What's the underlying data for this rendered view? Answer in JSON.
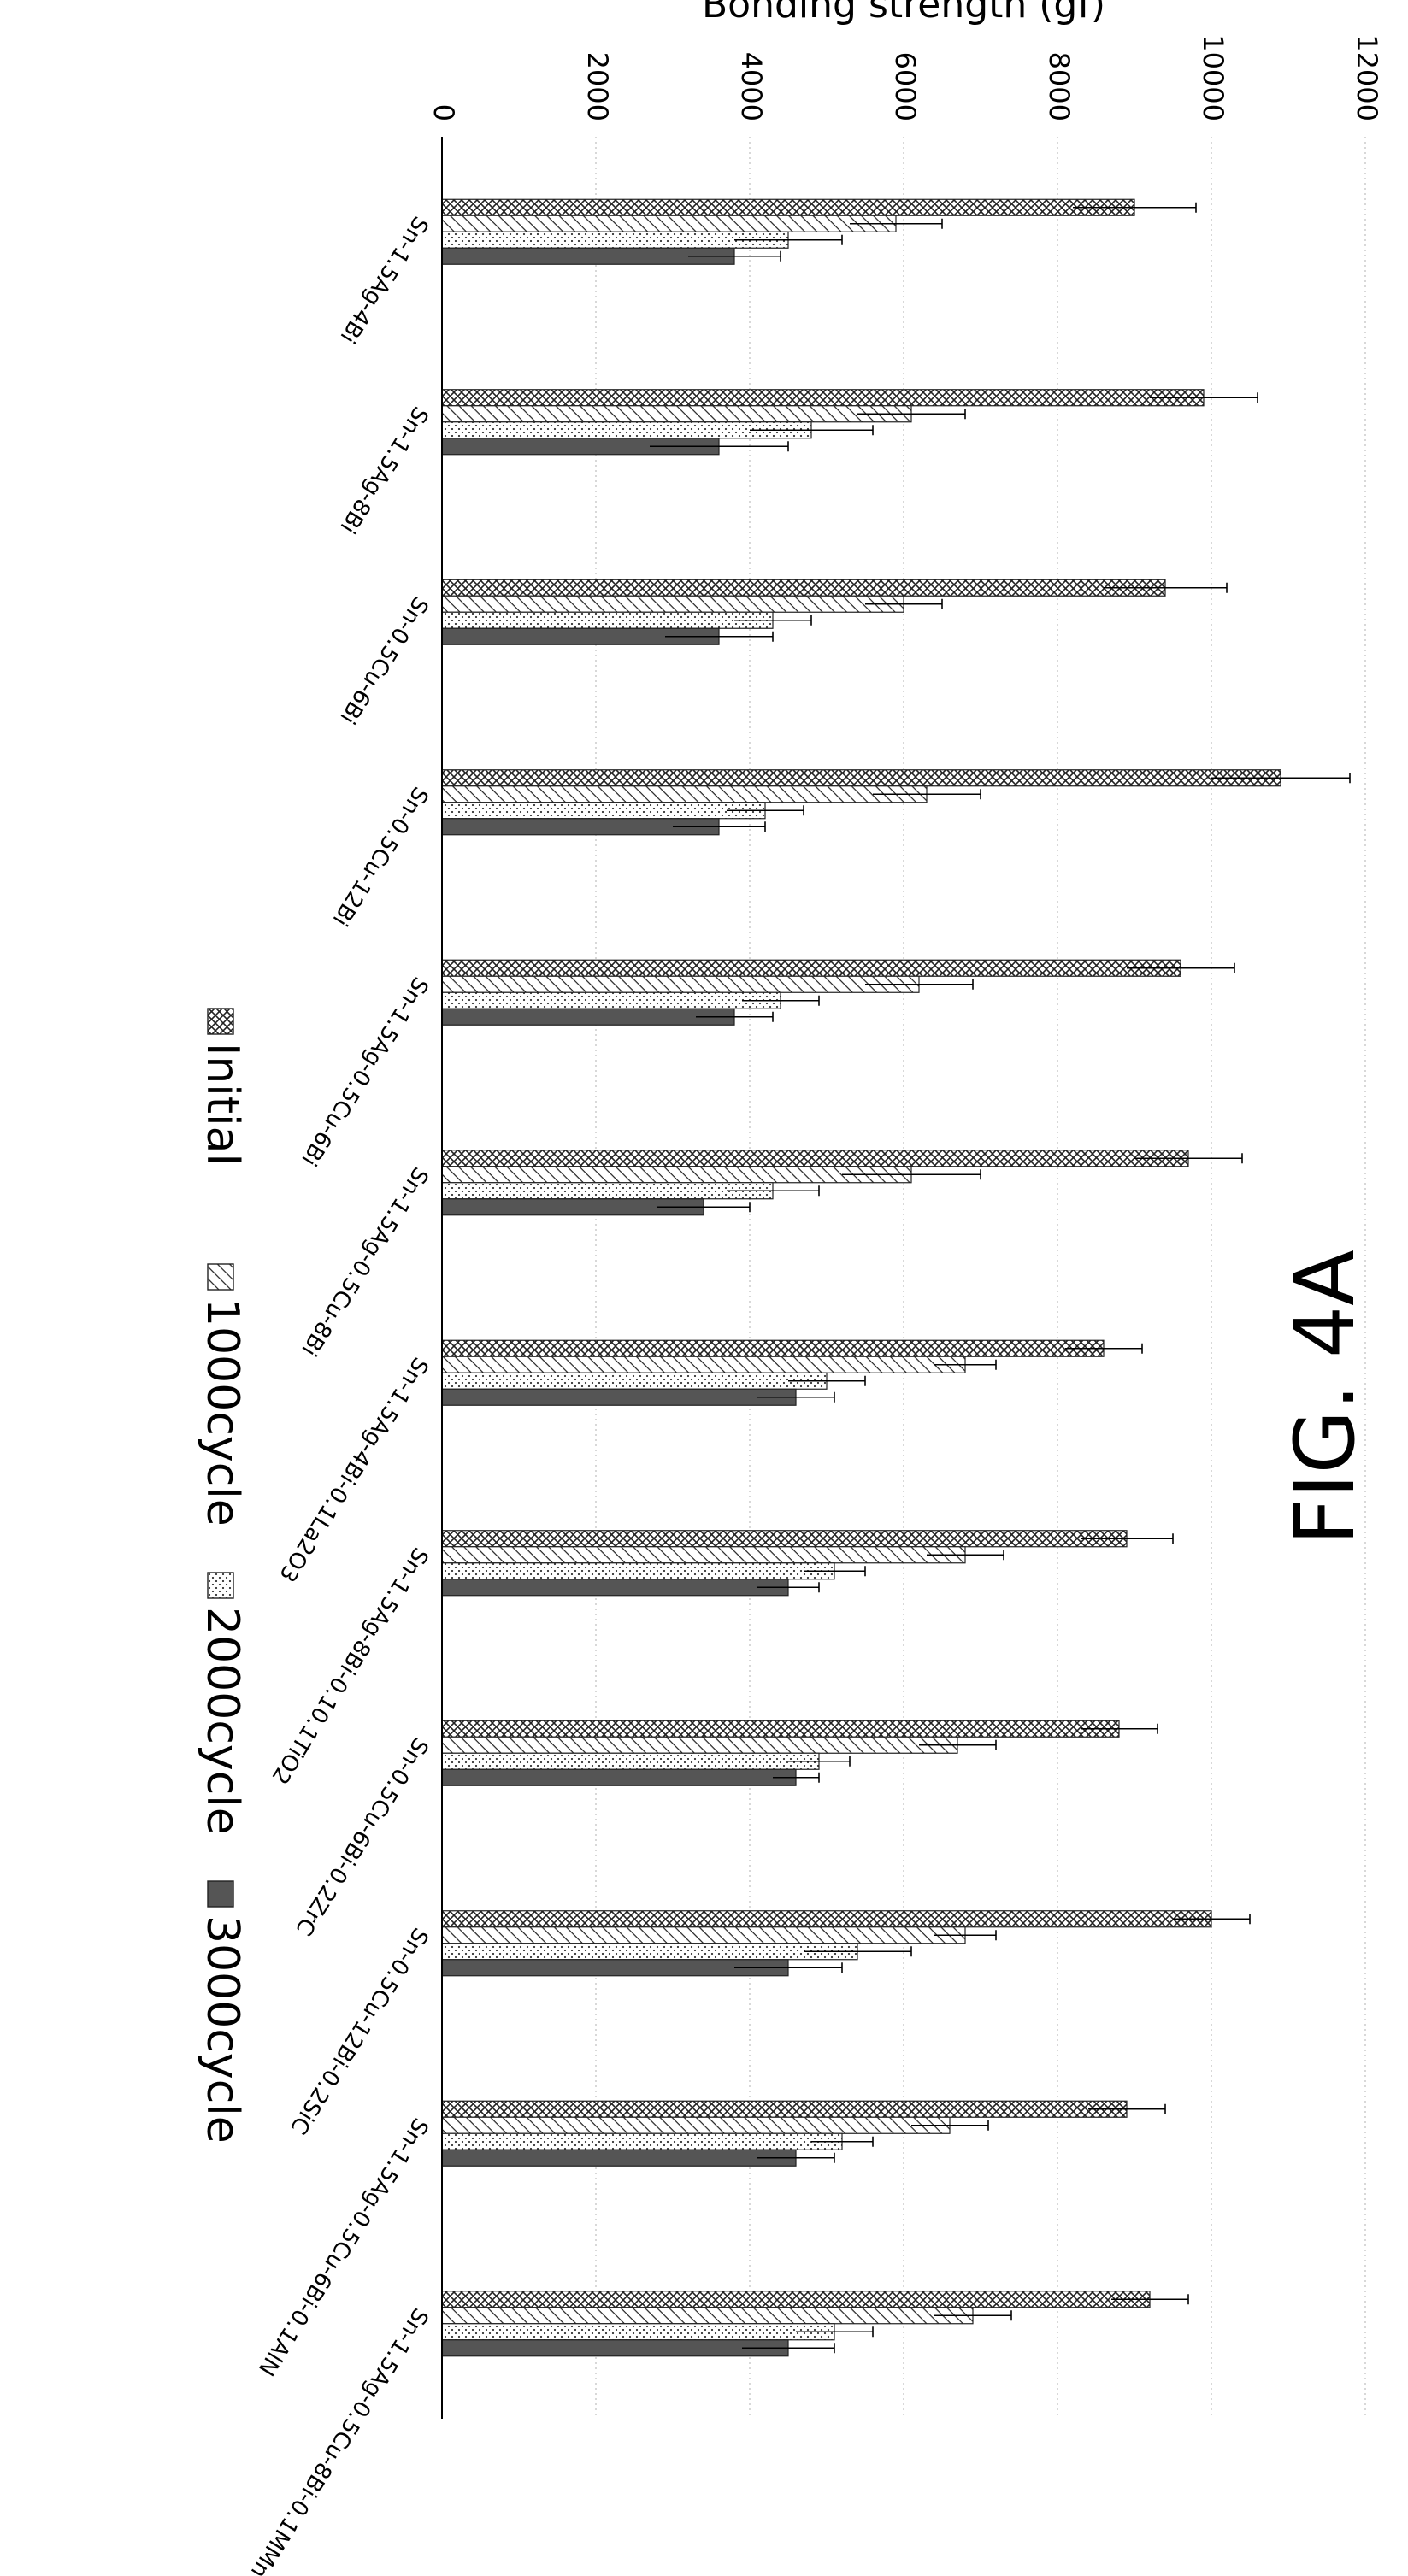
{
  "figure_label": "FIG. 4A",
  "chart_data": {
    "type": "bar",
    "orientation": "vertical bars, figure rotated 90 degrees",
    "ylabel": "Bonding strength (gf)",
    "xlabel": "",
    "ylim": [
      0,
      12000
    ],
    "yticks": [
      "0",
      "2000",
      "4000",
      "6000",
      "8000",
      "10000",
      "12000"
    ],
    "grid": true,
    "legend_position": "bottom",
    "categories": [
      "Sn-1.5Ag-4Bi",
      "Sn-1.5Ag-8Bi",
      "Sn-0.5Cu-6Bi",
      "Sn-0.5Cu-12Bi",
      "Sn-1.5Ag-0.5Cu-6Bi",
      "Sn-1.5Ag-0.5Cu-8Bi",
      "Sn-1.5Ag-4Bi-0.1La2O3",
      "Sn-1.5Ag-8Bi-0.10.1TiO2",
      "Sn-0.5Cu-6Bi-0.2ZrC",
      "Sn-0.5Cu-12Bi-0.2SiC",
      "Sn-1.5Ag-0.5Cu-6Bi-0.1AlN",
      "Sn-1.5Ag-0.5Cu-8Bi-0.1MMn"
    ],
    "series": [
      {
        "name": "Initial",
        "pattern": "crosshatch",
        "values": [
          9000,
          9900,
          9400,
          10900,
          9600,
          9700,
          8600,
          8900,
          8800,
          10000,
          8900,
          9200
        ],
        "errors": [
          800,
          700,
          800,
          900,
          700,
          700,
          500,
          600,
          500,
          500,
          500,
          500
        ]
      },
      {
        "name": "1000cycle",
        "pattern": "diagonal",
        "values": [
          5900,
          6100,
          6000,
          6300,
          6200,
          6100,
          6800,
          6800,
          6700,
          6800,
          6600,
          6900
        ],
        "errors": [
          600,
          700,
          500,
          700,
          700,
          900,
          400,
          500,
          500,
          400,
          500,
          500
        ]
      },
      {
        "name": "2000cycle",
        "pattern": "dotted",
        "values": [
          4500,
          4800,
          4300,
          4200,
          4400,
          4300,
          5000,
          5100,
          4900,
          5400,
          5200,
          5100
        ],
        "errors": [
          700,
          800,
          500,
          500,
          500,
          600,
          500,
          400,
          400,
          700,
          400,
          500
        ]
      },
      {
        "name": "3000cycle",
        "pattern": "solid",
        "values": [
          3800,
          3600,
          3600,
          3600,
          3800,
          3400,
          4600,
          4500,
          4600,
          4500,
          4600,
          4500
        ],
        "errors": [
          600,
          900,
          700,
          600,
          500,
          600,
          500,
          400,
          300,
          700,
          500,
          600
        ]
      }
    ],
    "colors": {
      "axis": "#000000",
      "bar_fill": "#ffffff",
      "grid": "#c8c8c8",
      "solid_fill": "#555555"
    }
  }
}
